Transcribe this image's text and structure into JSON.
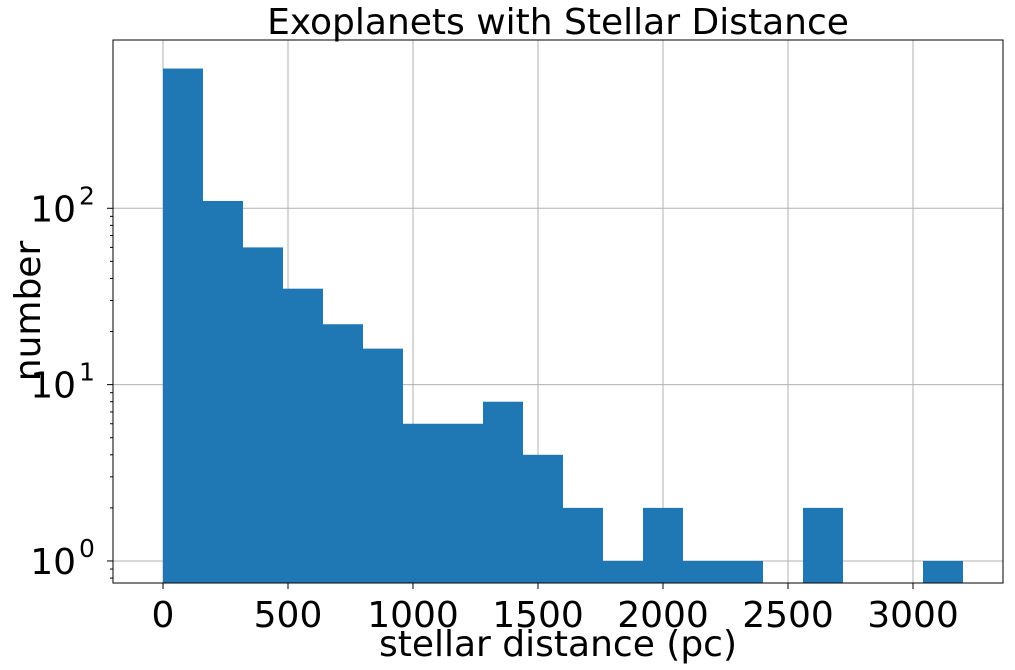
{
  "chart_data": {
    "type": "bar",
    "title": "Exoplanets with Stellar Distance",
    "xlabel": "stellar distance (pc)",
    "ylabel": "number",
    "yscale": "log",
    "grid": true,
    "xlim": [
      -200,
      3360
    ],
    "ylim": [
      0.75,
      900
    ],
    "xticks": [
      0,
      500,
      1000,
      1500,
      2000,
      2500,
      3000
    ],
    "xtick_labels": [
      "0",
      "500",
      "1000",
      "1500",
      "2000",
      "2500",
      "3000"
    ],
    "yticks": [
      1,
      10,
      100
    ],
    "ytick_labels": [
      {
        "base": "10",
        "exp": "0"
      },
      {
        "base": "10",
        "exp": "1"
      },
      {
        "base": "10",
        "exp": "2"
      }
    ],
    "bin_edges": [
      0,
      160,
      320,
      480,
      640,
      800,
      960,
      1120,
      1280,
      1440,
      1600,
      1760,
      1920,
      2080,
      2240,
      2400,
      2560,
      2720,
      2880,
      3040,
      3200
    ],
    "counts": [
      620,
      110,
      60,
      35,
      22,
      16,
      6,
      6,
      8,
      4,
      2,
      1,
      2,
      1,
      1,
      0,
      2,
      0,
      0,
      1
    ],
    "bar_color": "#1f77b4"
  }
}
